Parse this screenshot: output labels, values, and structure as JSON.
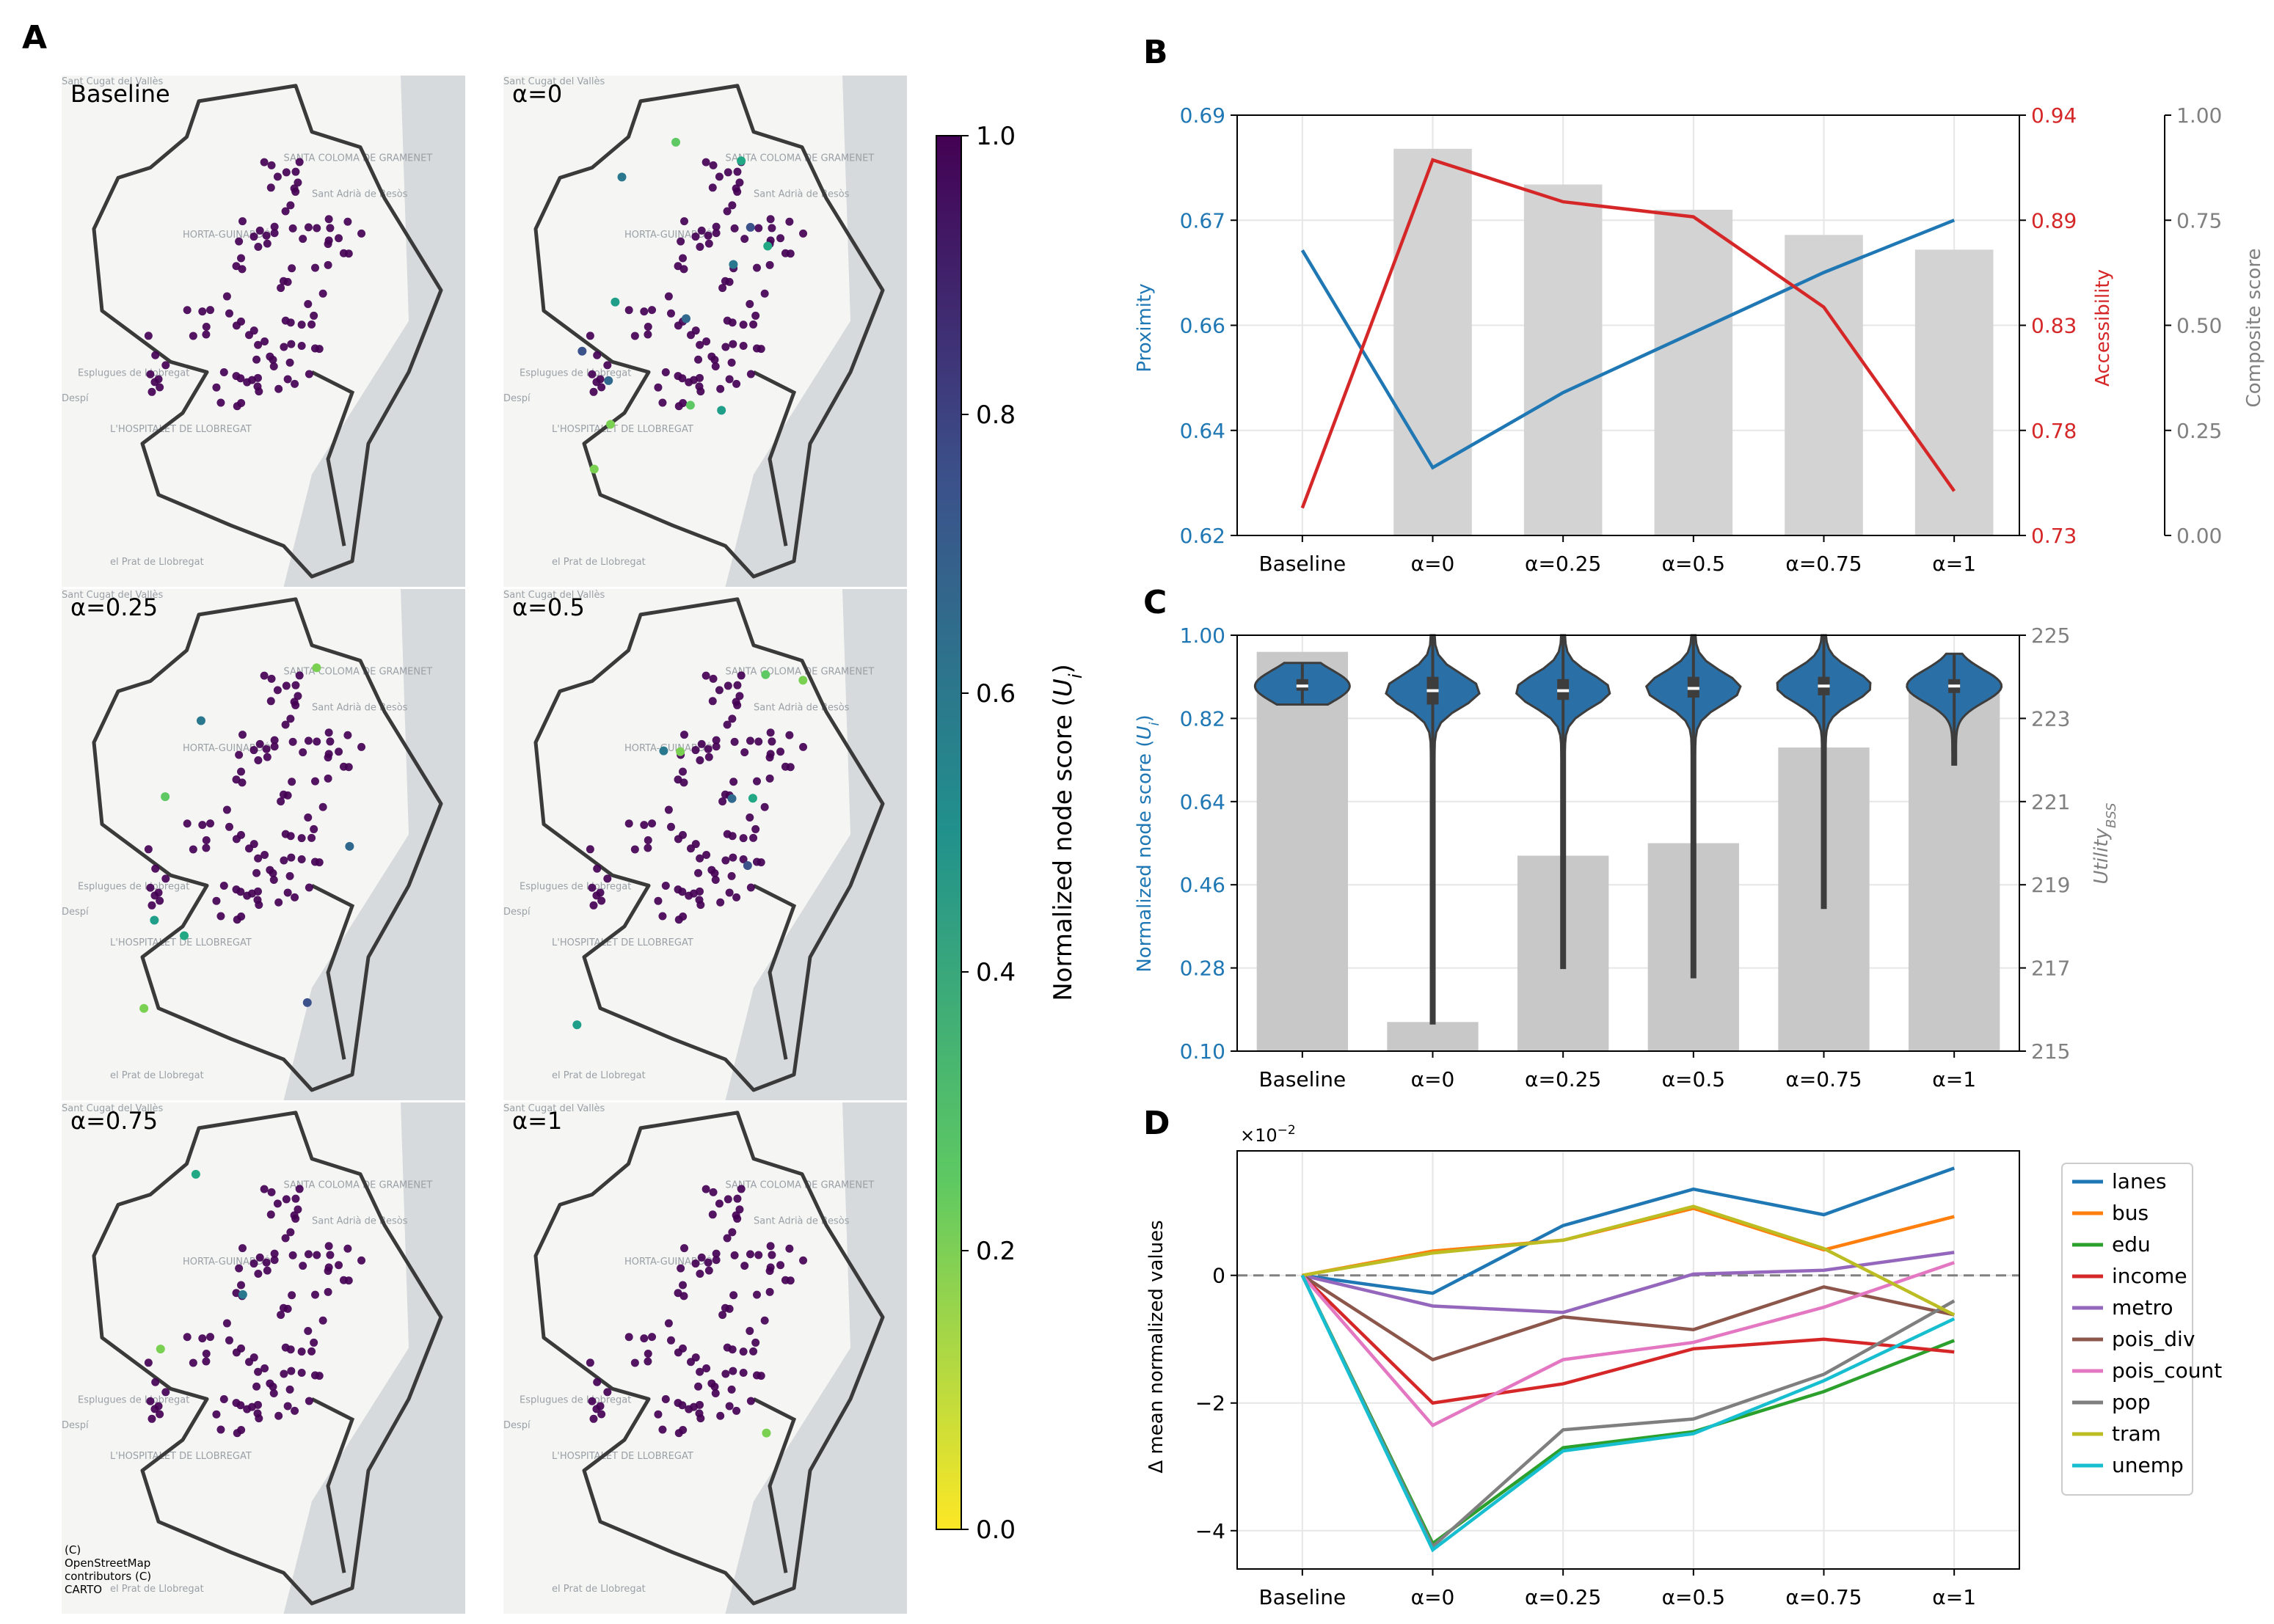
{
  "panel_letters": {
    "a": "A",
    "b": "B",
    "c": "C",
    "d": "D"
  },
  "maps": {
    "titles": [
      "Baseline",
      "α=0",
      "α=0.25",
      "α=0.5",
      "α=0.75",
      "α=1"
    ],
    "attribution": [
      "(C)",
      "OpenStreetMap",
      "contributors (C)",
      "CARTO"
    ],
    "place_names": [
      "SANTA COLOMA DE GRAMENET",
      "Sant Adrià de Besòs",
      "Esplugues de Llobregat",
      "L'HOSPITALET DE LLOBREGAT",
      "el Prat de Llobregat",
      "Despí",
      "HORTA-GUINARDÓ",
      "Sant Cugat del Vallès"
    ],
    "outlier_counts": [
      0,
      14,
      8,
      8,
      3,
      1
    ]
  },
  "colorbar": {
    "label": "Normalized node score (",
    "label_var": "U",
    "label_sub": "i",
    "label_end": ")",
    "ticks": [
      "0.0",
      "0.2",
      "0.4",
      "0.6",
      "0.8",
      "1.0"
    ],
    "colors": [
      "#fde725",
      "#5ec962",
      "#21918c",
      "#3b528b",
      "#440154"
    ]
  },
  "chart_data": [
    {
      "panel": "B",
      "type": "bar",
      "categories": [
        "Baseline",
        "α=0",
        "α=0.25",
        "α=0.5",
        "α=0.75",
        "α=1"
      ],
      "series": [
        {
          "name": "Composite score",
          "type": "bar",
          "axis": "right2",
          "values": [
            null,
            0.92,
            0.835,
            0.775,
            0.715,
            0.68
          ],
          "color": "#d3d3d3"
        },
        {
          "name": "Proximity",
          "type": "line",
          "axis": "left",
          "values": [
            0.6675,
            0.6313,
            0.6438,
            0.6538,
            0.6638,
            0.6725
          ],
          "color": "#1f77b4"
        },
        {
          "name": "Accessibility",
          "type": "line",
          "axis": "right",
          "values": [
            0.7437,
            0.9176,
            0.8967,
            0.8892,
            0.8441,
            0.7522
          ],
          "color": "#d62728"
        }
      ],
      "ylabel_left": "Proximity",
      "ylabel_right": "Accessibility",
      "ylabel_right2": "Composite score",
      "yticks_left": [
        "0.62",
        "0.64",
        "0.66",
        "0.67",
        "0.69"
      ],
      "yticks_right": [
        "0.73",
        "0.78",
        "0.83",
        "0.89",
        "0.94"
      ],
      "yticks_right2": [
        "0.00",
        "0.25",
        "0.50",
        "0.75",
        "1.00"
      ],
      "ylim_left": [
        0.62,
        0.69
      ],
      "ylim_right": [
        0.73,
        0.94
      ],
      "ylim_right2": [
        0,
        1
      ],
      "grid": true
    },
    {
      "panel": "C",
      "type": "bar",
      "categories": [
        "Baseline",
        "α=0",
        "α=0.25",
        "α=0.5",
        "α=0.75",
        "α=1"
      ],
      "series": [
        {
          "name": "Utility",
          "type": "bar",
          "axis": "right",
          "values": [
            224.6,
            215.7,
            219.7,
            220.0,
            222.3,
            223.7
          ],
          "color": "#c8c8c8"
        },
        {
          "name": "Normalized node score",
          "type": "violin",
          "axis": "left",
          "values": [
            {
              "min": 0.85,
              "q1": 0.88,
              "median": 0.89,
              "q3": 0.905,
              "max": 0.94
            },
            {
              "min": 0.16,
              "q1": 0.85,
              "median": 0.88,
              "q3": 0.91,
              "max": 1.0
            },
            {
              "min": 0.28,
              "q1": 0.86,
              "median": 0.88,
              "q3": 0.905,
              "max": 1.0
            },
            {
              "min": 0.26,
              "q1": 0.865,
              "median": 0.885,
              "q3": 0.91,
              "max": 1.0
            },
            {
              "min": 0.41,
              "q1": 0.87,
              "median": 0.89,
              "q3": 0.91,
              "max": 1.0
            },
            {
              "min": 0.72,
              "q1": 0.875,
              "median": 0.89,
              "q3": 0.905,
              "max": 0.96
            }
          ],
          "color": "#2a6fa6"
        }
      ],
      "ylabel_left": "Normalized node score (",
      "ylabel_left_var": "U",
      "ylabel_left_sub": "i",
      "ylabel_left_end": ")",
      "ylabel_right": "Utility",
      "ylabel_right_sub": "BSS",
      "yticks_left": [
        "0.10",
        "0.28",
        "0.46",
        "0.64",
        "0.82",
        "1.00"
      ],
      "yticks_right": [
        "215",
        "217",
        "219",
        "221",
        "223",
        "225"
      ],
      "ylim_left": [
        0.1,
        1.0
      ],
      "ylim_right": [
        215,
        225
      ],
      "grid": true
    },
    {
      "panel": "D",
      "type": "line",
      "categories": [
        "Baseline",
        "α=0",
        "α=0.25",
        "α=0.5",
        "α=0.75",
        "α=1"
      ],
      "ylabel": "Δ mean normalized values",
      "yscale_label": "×10",
      "yscale_exp": "−2",
      "yticks": [
        "−4",
        "−2",
        "0"
      ],
      "ylim": [
        -4.6,
        1.95
      ],
      "units": "×10^-2",
      "grid": true,
      "legend": "outside right",
      "series": [
        {
          "name": "lanes",
          "color": "#1f77b4",
          "values": [
            0,
            -0.28,
            0.78,
            1.35,
            0.95,
            1.68
          ]
        },
        {
          "name": "bus",
          "color": "#ff7f0e",
          "values": [
            0,
            0.38,
            0.55,
            1.05,
            0.4,
            0.92
          ]
        },
        {
          "name": "edu",
          "color": "#2ca02c",
          "values": [
            0,
            -4.2,
            -2.7,
            -2.45,
            -1.82,
            -1.02
          ]
        },
        {
          "name": "income",
          "color": "#d62728",
          "values": [
            0,
            -2.0,
            -1.7,
            -1.15,
            -1.0,
            -1.2
          ]
        },
        {
          "name": "metro",
          "color": "#9467bd",
          "values": [
            0,
            -0.48,
            -0.58,
            0.02,
            0.08,
            0.36
          ]
        },
        {
          "name": "pois_div",
          "color": "#8c564b",
          "values": [
            0,
            -1.32,
            -0.65,
            -0.85,
            -0.18,
            -0.62
          ]
        },
        {
          "name": "pois_count",
          "color": "#e377c2",
          "values": [
            0,
            -2.35,
            -1.32,
            -1.05,
            -0.5,
            0.2
          ]
        },
        {
          "name": "pop",
          "color": "#7f7f7f",
          "values": [
            0,
            -4.25,
            -2.42,
            -2.25,
            -1.55,
            -0.4
          ]
        },
        {
          "name": "tram",
          "color": "#bcbd22",
          "values": [
            0,
            0.35,
            0.55,
            1.08,
            0.42,
            -0.62
          ]
        },
        {
          "name": "unemp",
          "color": "#17becf",
          "values": [
            0,
            -4.3,
            -2.75,
            -2.48,
            -1.65,
            -0.68
          ]
        }
      ]
    }
  ]
}
